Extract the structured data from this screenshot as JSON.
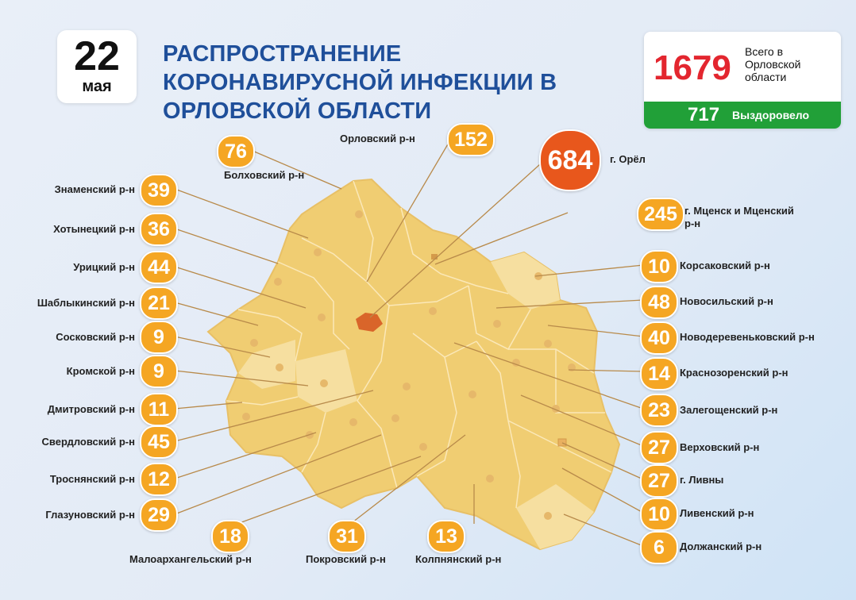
{
  "date": {
    "day": "22",
    "month": "мая"
  },
  "title": "РАСПРОСТРАНЕНИЕ КОРОНАВИРУСНОЙ ИНФЕКЦИИ В ОРЛОВСКОЙ ОБЛАСТИ",
  "totals": {
    "total_value": "1679",
    "total_label": "Всего в Орловской области",
    "recovered_value": "717",
    "recovered_label": "Выздоровело"
  },
  "colors": {
    "title": "#1f4f9a",
    "badge": "#f5a623",
    "city_badge": "#e8571c",
    "total": "#e3262f",
    "recovered": "#21a038",
    "map_fill": "#f0cd72"
  },
  "districts": {
    "znamensky": {
      "name": "Знаменский р-н",
      "count": "39"
    },
    "khotynetsky": {
      "name": "Хотынецкий р-н",
      "count": "36"
    },
    "uritsky": {
      "name": "Урицкий р-н",
      "count": "44"
    },
    "shablykinsky": {
      "name": "Шаблыкинский р-н",
      "count": "21"
    },
    "soskovsky": {
      "name": "Сосковский р-н",
      "count": "9"
    },
    "kromskoy": {
      "name": "Кромской р-н",
      "count": "9"
    },
    "dmitrovsky": {
      "name": "Дмитровский р-н",
      "count": "11"
    },
    "sverdlovsky": {
      "name": "Свердловский р-н",
      "count": "45"
    },
    "trosnyansky": {
      "name": "Троснянский р-н",
      "count": "12"
    },
    "glazunovsky": {
      "name": "Глазуновский р-н",
      "count": "29"
    },
    "bolkhovsky": {
      "name": "Болховский р-н",
      "count": "76"
    },
    "orlovsky": {
      "name": "Орловский р-н",
      "count": "152"
    },
    "orel": {
      "name": "г. Орёл",
      "count": "684"
    },
    "mtsensk": {
      "name": "г. Мценск и Мценский р-н",
      "count": "245"
    },
    "korsakovsky": {
      "name": "Корсаковский р-н",
      "count": "10"
    },
    "novosilsky": {
      "name": "Новосильский р-н",
      "count": "48"
    },
    "novoderevenkovsky": {
      "name": "Новодеревеньковский р-н",
      "count": "40"
    },
    "krasnozorensky": {
      "name": "Краснозоренский р-н",
      "count": "14"
    },
    "zaleshchensky": {
      "name": "Залегощенский р-н",
      "count": "23"
    },
    "verkhovsky": {
      "name": "Верховский р-н",
      "count": "27"
    },
    "livny": {
      "name": "г. Ливны",
      "count": "27"
    },
    "livensky": {
      "name": "Ливенский р-н",
      "count": "10"
    },
    "dolzhansky": {
      "name": "Должанский р-н",
      "count": "6"
    },
    "maloarkhangelsky": {
      "name": "Малоархангельский р-н",
      "count": "18"
    },
    "pokrovsky": {
      "name": "Покровский р-н",
      "count": "31"
    },
    "kolpnyansky": {
      "name": "Колпнянский р-н",
      "count": "13"
    }
  }
}
